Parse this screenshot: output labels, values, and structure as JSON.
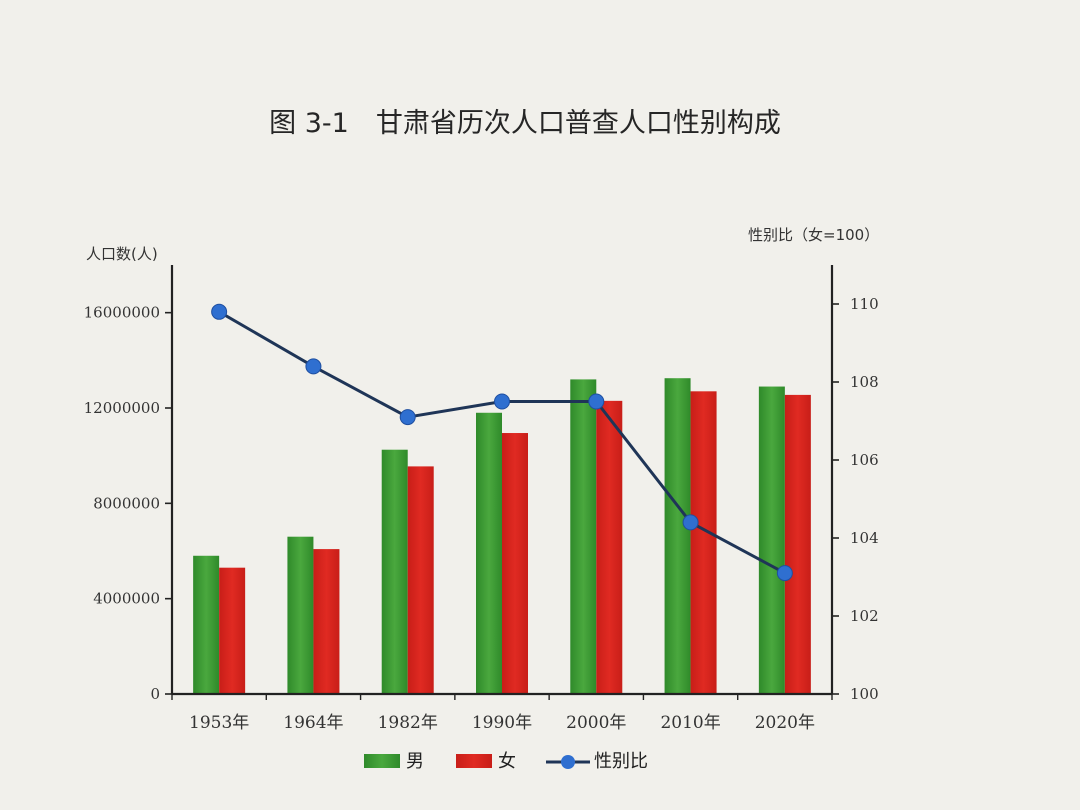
{
  "chart_data": {
    "type": "bar",
    "title": "图 3-1　甘肃省历次人口普查人口性别构成",
    "ylabel": "人口数(人)",
    "y2label": "性别比（女=100）",
    "categories": [
      "1953年",
      "1964年",
      "1982年",
      "1990年",
      "2000年",
      "2010年",
      "2020年"
    ],
    "ylim": [
      0,
      18000000
    ],
    "yticks": [
      "0",
      "4000000",
      "8000000",
      "12000000",
      "16000000"
    ],
    "y2lim": [
      100,
      111
    ],
    "y2ticks": [
      "100",
      "102",
      "104",
      "106",
      "108",
      "110"
    ],
    "series": [
      {
        "name": "男",
        "type": "bar",
        "color": "#3e9a34",
        "values": [
          5800000,
          6600000,
          10250000,
          11800000,
          13200000,
          13250000,
          12900000
        ]
      },
      {
        "name": "女",
        "type": "bar",
        "color": "#d8261f",
        "values": [
          5300000,
          6080000,
          9550000,
          10950000,
          12300000,
          12700000,
          12550000
        ]
      },
      {
        "name": "性别比",
        "type": "line",
        "axis": "right",
        "color": "#1f3557",
        "marker_color": "#2f6fd0",
        "values": [
          109.8,
          108.4,
          107.1,
          107.5,
          107.5,
          104.4,
          103.1
        ]
      }
    ],
    "legend": [
      "男",
      "女",
      "性别比"
    ],
    "legend_position": "bottom",
    "grid": false
  }
}
